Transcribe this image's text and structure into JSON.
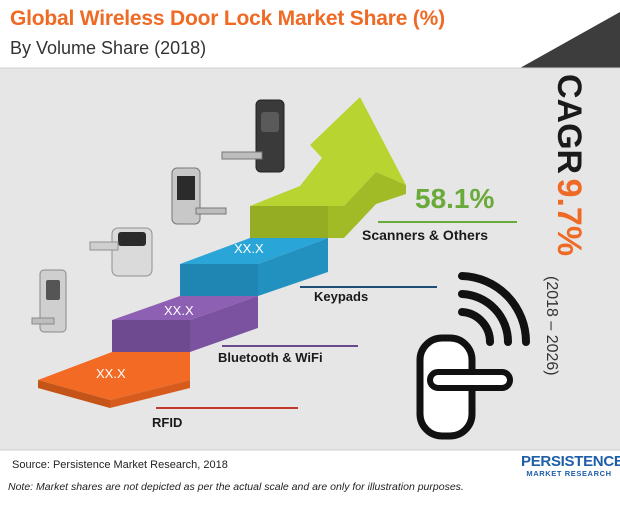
{
  "header": {
    "title": "Global Wireless Door Lock Market Share (%)",
    "subtitle": "By Volume Share (2018)"
  },
  "cagr": {
    "label": "CAGR",
    "value": "9.7%",
    "period": "(2018 – 2026)"
  },
  "chart_data": {
    "type": "bar",
    "categories": [
      "RFID",
      "Bluetooth & WiFi",
      "Keypads",
      "Scanners & Others"
    ],
    "values": [
      null,
      null,
      null,
      58.1
    ],
    "value_labels": [
      "XX.X",
      "XX.X",
      "XX.X",
      "58.1%"
    ],
    "colors": [
      "#f26a24",
      "#8e60b3",
      "#2aa5d8",
      "#b8d431"
    ],
    "title": "Global Wireless Door Lock Market Share (%)",
    "subtitle": "By Volume Share (2018)"
  },
  "footer": {
    "source": "Source: Persistence Market Research, 2018",
    "note": "Note: Market shares are not depicted as per the actual scale and are only for illustration purposes.",
    "logo_top": "PERSISTENCE",
    "logo_bottom": "MARKET RESEARCH"
  },
  "colors": {
    "accent": "#ee6a25",
    "background_panel": "#e6e6e6",
    "header_dark": "#3d3d3d"
  },
  "icons": [
    "door-lock-rfid-icon",
    "door-lock-card-icon",
    "door-lock-keypad-icon",
    "door-lock-fingerprint-icon",
    "wireless-lock-icon"
  ]
}
